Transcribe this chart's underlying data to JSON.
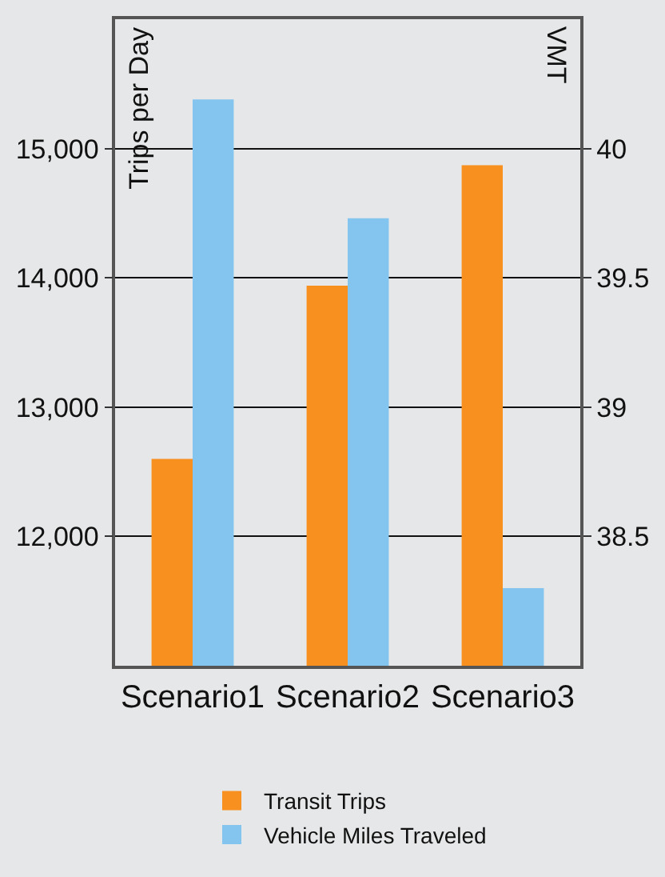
{
  "chart_data": {
    "type": "bar",
    "categories": [
      "Scenario1",
      "Scenario2",
      "Scenario3"
    ],
    "series": [
      {
        "name": "Transit Trips",
        "color": "#f7901e",
        "values": [
          12600,
          13940,
          14870
        ]
      },
      {
        "name": "Vehicle Miles Traveled",
        "color": "#83c5ee",
        "values": [
          40.19,
          39.73,
          38.3
        ],
        "axis": "y2"
      }
    ],
    "ylabel": "Trips per Day",
    "y2label": "VMT",
    "ylim": [
      11000,
      16000
    ],
    "yticks": [
      {
        "value": 12000,
        "label": "12,000"
      },
      {
        "value": 13000,
        "label": "13,000"
      },
      {
        "value": 14000,
        "label": "14,000"
      },
      {
        "value": 15000,
        "label": "15,000"
      }
    ],
    "y2lim": [
      38,
      40.5
    ],
    "y2ticks": [
      38.5,
      39,
      39.5,
      40
    ],
    "grid": "y",
    "legend": "bottom"
  }
}
